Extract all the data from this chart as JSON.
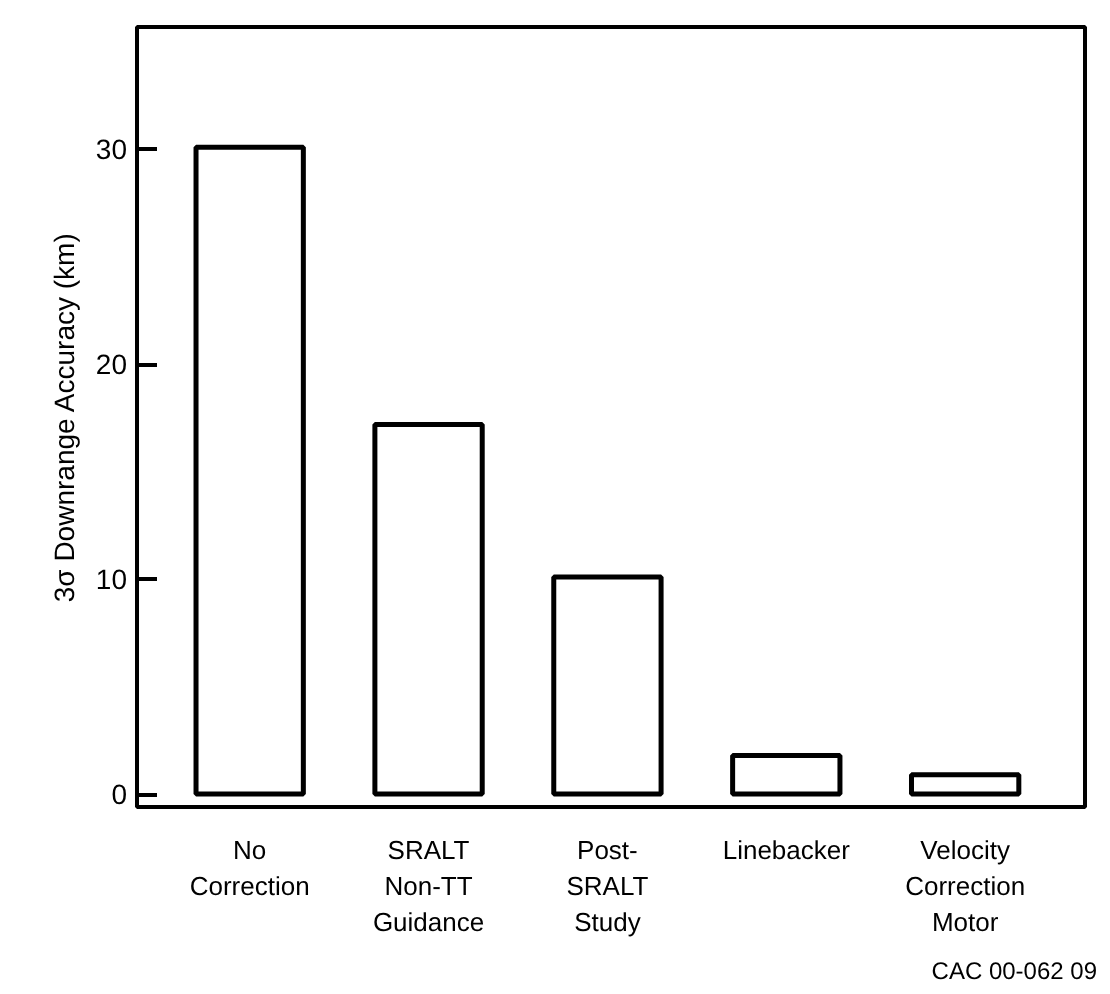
{
  "chart_data": {
    "type": "bar",
    "ylabel": "3σ Downrange Accuracy (km)",
    "categories": [
      "No\nCorrection",
      "SRALT\nNon-TT\nGuidance",
      "Post-\nSRALT\nStudy",
      "Linebacker",
      "Velocity\nCorrection\nMotor"
    ],
    "values": [
      30.1,
      17.2,
      10.1,
      1.8,
      0.9
    ],
    "color": "#ffffff",
    "ylim": [
      -0.6,
      35.7
    ],
    "yticks": [
      0,
      10,
      20,
      30
    ],
    "grid": false,
    "annotations": [
      "CAC 00-062 09"
    ]
  }
}
